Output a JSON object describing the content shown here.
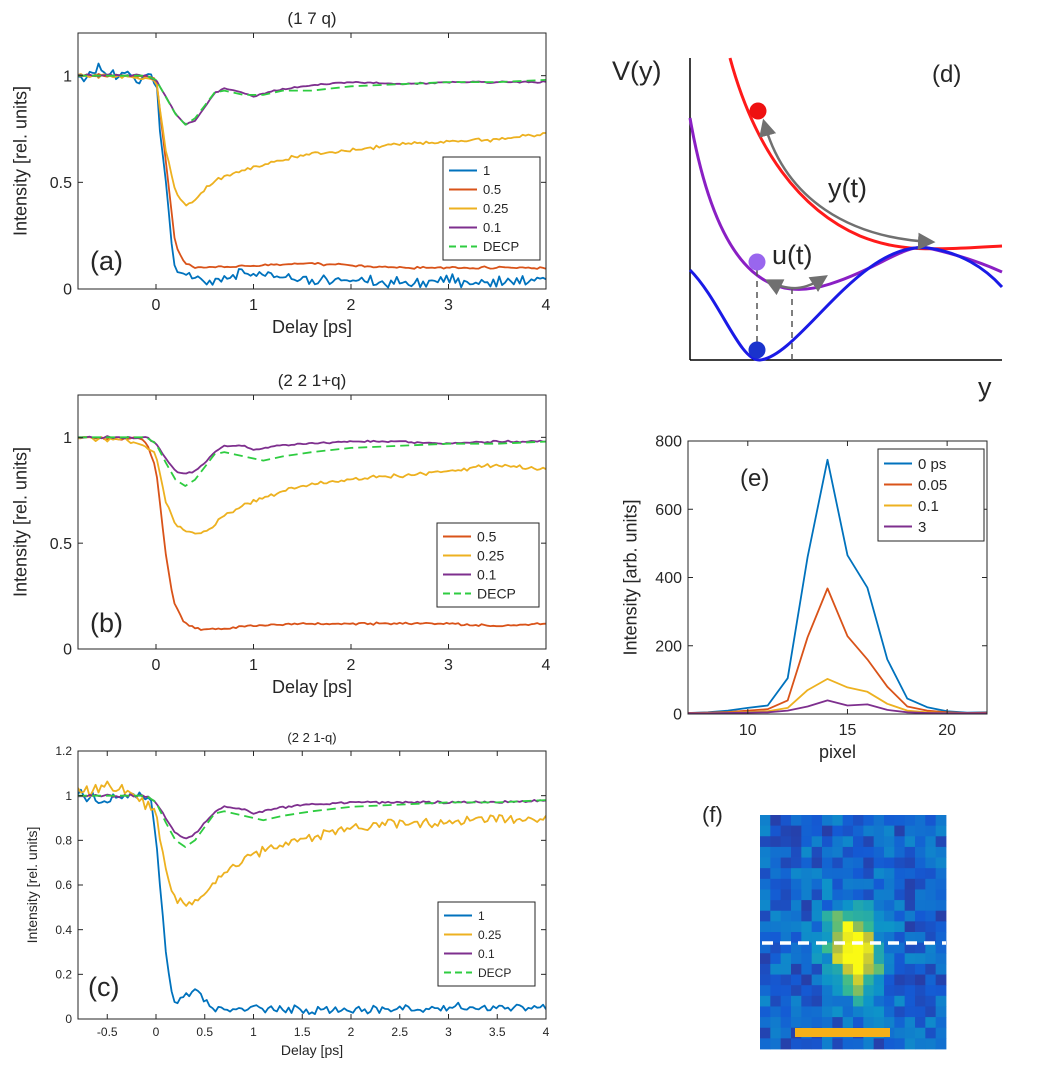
{
  "chart_data": [
    {
      "id": "a",
      "type": "line",
      "title": "(1 7 q)",
      "panel_label": "(a)",
      "xlabel": "Delay [ps]",
      "ylabel": "Intensity [rel. units]",
      "xlim": [
        -0.8,
        4
      ],
      "ylim": [
        0,
        1.2
      ],
      "xticks": [
        0,
        1,
        2,
        3,
        4
      ],
      "xtick_labels": [
        "0",
        "1",
        "2",
        "3",
        "4"
      ],
      "yticks": [
        0,
        0.5,
        1
      ],
      "ytick_labels": [
        "0",
        "0.5",
        "1"
      ],
      "legend_position": "right-middle",
      "series": [
        {
          "name": "1",
          "color": "#0072BD",
          "dash": "solid",
          "noise": 0.035,
          "x": [
            -0.8,
            -0.6,
            -0.4,
            -0.2,
            0,
            0.05,
            0.1,
            0.15,
            0.2,
            0.3,
            0.4,
            0.5,
            0.6,
            0.8,
            1,
            1.5,
            2,
            2.5,
            3,
            3.5,
            4
          ],
          "y": [
            1.0,
            1.02,
            1.0,
            1.0,
            0.98,
            0.7,
            0.5,
            0.25,
            0.1,
            0.07,
            0.06,
            0.04,
            0.035,
            0.06,
            0.07,
            0.05,
            0.04,
            0.035,
            0.04,
            0.035,
            0.04
          ]
        },
        {
          "name": "0.5",
          "color": "#D95319",
          "dash": "solid",
          "noise": 0.006,
          "x": [
            -0.8,
            -0.4,
            -0.2,
            0,
            0.05,
            0.1,
            0.15,
            0.2,
            0.3,
            0.4,
            0.5,
            1,
            1.5,
            2,
            2.5,
            3,
            3.5,
            4
          ],
          "y": [
            1.0,
            1.0,
            1.0,
            0.99,
            0.8,
            0.6,
            0.4,
            0.2,
            0.12,
            0.1,
            0.1,
            0.11,
            0.12,
            0.11,
            0.1,
            0.1,
            0.1,
            0.1
          ]
        },
        {
          "name": "0.25",
          "color": "#EDB120",
          "dash": "solid",
          "noise": 0.01,
          "x": [
            -0.8,
            -0.4,
            -0.2,
            0,
            0.1,
            0.2,
            0.3,
            0.4,
            0.5,
            0.7,
            1,
            1.5,
            2,
            2.5,
            3,
            3.5,
            4
          ],
          "y": [
            1.0,
            1.0,
            0.99,
            0.98,
            0.65,
            0.45,
            0.39,
            0.42,
            0.47,
            0.53,
            0.57,
            0.63,
            0.65,
            0.68,
            0.69,
            0.7,
            0.73
          ]
        },
        {
          "name": "0.1",
          "color": "#7E2F8E",
          "dash": "solid",
          "noise": 0.005,
          "x": [
            -0.8,
            -0.4,
            -0.1,
            0,
            0.1,
            0.2,
            0.3,
            0.4,
            0.5,
            0.6,
            0.7,
            0.9,
            1.0,
            1.2,
            1.5,
            2,
            2.5,
            3,
            3.5,
            4
          ],
          "y": [
            1.0,
            1.0,
            1.0,
            0.98,
            0.9,
            0.82,
            0.77,
            0.79,
            0.85,
            0.92,
            0.94,
            0.92,
            0.9,
            0.93,
            0.95,
            0.97,
            0.96,
            0.97,
            0.97,
            0.97
          ]
        },
        {
          "name": "DECP",
          "color": "#2ECC40",
          "dash": "dashed",
          "noise": 0,
          "x": [
            -0.8,
            -0.4,
            -0.1,
            0,
            0.1,
            0.2,
            0.3,
            0.4,
            0.5,
            0.6,
            0.7,
            0.9,
            1.1,
            1.3,
            1.6,
            2,
            2.5,
            3,
            3.5,
            4
          ],
          "y": [
            1.0,
            1.0,
            1.0,
            0.98,
            0.9,
            0.82,
            0.77,
            0.8,
            0.86,
            0.92,
            0.93,
            0.91,
            0.91,
            0.93,
            0.93,
            0.95,
            0.96,
            0.97,
            0.97,
            0.98
          ]
        }
      ]
    },
    {
      "id": "b",
      "type": "line",
      "title": "(2 2 1+q)",
      "panel_label": "(b)",
      "xlabel": "Delay [ps]",
      "ylabel": "Intensity [rel. units]",
      "xlim": [
        -0.8,
        4
      ],
      "ylim": [
        0,
        1.2
      ],
      "xticks": [
        0,
        1,
        2,
        3,
        4
      ],
      "xtick_labels": [
        "0",
        "1",
        "2",
        "3",
        "4"
      ],
      "yticks": [
        0,
        0.5,
        1
      ],
      "ytick_labels": [
        "0",
        "0.5",
        "1"
      ],
      "legend_position": "right-middle",
      "series": [
        {
          "name": "0.5",
          "color": "#D95319",
          "dash": "solid",
          "noise": 0.006,
          "x": [
            -0.8,
            -0.6,
            -0.4,
            -0.2,
            -0.1,
            0,
            0.05,
            0.1,
            0.15,
            0.2,
            0.3,
            0.4,
            0.5,
            1,
            1.5,
            2,
            2.5,
            3,
            3.5,
            4
          ],
          "y": [
            1.0,
            1.0,
            0.99,
            1.0,
            0.98,
            0.85,
            0.65,
            0.45,
            0.3,
            0.2,
            0.12,
            0.1,
            0.09,
            0.11,
            0.12,
            0.12,
            0.12,
            0.12,
            0.11,
            0.12
          ]
        },
        {
          "name": "0.25",
          "color": "#EDB120",
          "dash": "solid",
          "noise": 0.012,
          "x": [
            -0.8,
            -0.4,
            -0.2,
            0,
            0.1,
            0.2,
            0.3,
            0.4,
            0.5,
            0.7,
            1,
            1.5,
            2,
            2.5,
            3,
            3.5,
            4
          ],
          "y": [
            1.0,
            0.99,
            0.98,
            0.92,
            0.7,
            0.59,
            0.56,
            0.55,
            0.55,
            0.63,
            0.7,
            0.77,
            0.8,
            0.82,
            0.84,
            0.87,
            0.85
          ]
        },
        {
          "name": "0.1",
          "color": "#7E2F8E",
          "dash": "solid",
          "noise": 0.005,
          "x": [
            -0.8,
            -0.4,
            -0.1,
            0,
            0.1,
            0.2,
            0.3,
            0.4,
            0.5,
            0.6,
            0.7,
            0.9,
            1.0,
            1.2,
            1.5,
            2,
            2.5,
            3,
            3.5,
            4
          ],
          "y": [
            1.0,
            1.0,
            1.0,
            0.97,
            0.9,
            0.84,
            0.83,
            0.84,
            0.88,
            0.93,
            0.96,
            0.96,
            0.94,
            0.96,
            0.97,
            0.98,
            0.98,
            0.97,
            0.98,
            0.98
          ]
        },
        {
          "name": "DECP",
          "color": "#2ECC40",
          "dash": "dashed",
          "noise": 0,
          "x": [
            -0.8,
            -0.4,
            -0.1,
            0,
            0.1,
            0.2,
            0.3,
            0.4,
            0.5,
            0.6,
            0.7,
            0.9,
            1.1,
            1.3,
            1.6,
            2,
            2.5,
            3,
            3.5,
            4
          ],
          "y": [
            1.0,
            1.0,
            1.0,
            0.97,
            0.88,
            0.8,
            0.77,
            0.8,
            0.86,
            0.92,
            0.93,
            0.91,
            0.89,
            0.91,
            0.93,
            0.95,
            0.96,
            0.97,
            0.97,
            0.98
          ]
        }
      ]
    },
    {
      "id": "c",
      "type": "line",
      "title": "(2 2 1-q)",
      "panel_label": "(c)",
      "xlabel": "Delay [ps]",
      "ylabel": "Intensity [rel. units]",
      "xlim": [
        -0.8,
        4
      ],
      "ylim": [
        0,
        1.2
      ],
      "xticks": [
        -0.5,
        0,
        0.5,
        1,
        1.5,
        2,
        2.5,
        3,
        3.5,
        4
      ],
      "xtick_labels": [
        "-0.5",
        "0",
        "0.5",
        "1",
        "1.5",
        "2",
        "2.5",
        "3",
        "3.5",
        "4"
      ],
      "yticks": [
        0,
        0.2,
        0.4,
        0.6,
        0.8,
        1,
        1.2
      ],
      "ytick_labels": [
        "0",
        "0.2",
        "0.4",
        "0.6",
        "0.8",
        "1",
        "1.2"
      ],
      "legend_position": "right-lower",
      "series": [
        {
          "name": "1",
          "color": "#0072BD",
          "dash": "solid",
          "noise": 0.025,
          "x": [
            -0.8,
            -0.6,
            -0.4,
            -0.2,
            -0.05,
            0,
            0.05,
            0.1,
            0.15,
            0.2,
            0.3,
            0.4,
            0.5,
            0.6,
            0.8,
            1,
            1.5,
            2,
            2.5,
            3,
            3.5,
            4
          ],
          "y": [
            1.0,
            0.98,
            1.0,
            0.99,
            0.97,
            0.8,
            0.55,
            0.3,
            0.12,
            0.07,
            0.1,
            0.12,
            0.08,
            0.05,
            0.04,
            0.05,
            0.035,
            0.04,
            0.045,
            0.05,
            0.05,
            0.05
          ]
        },
        {
          "name": "0.25",
          "color": "#EDB120",
          "dash": "solid",
          "noise": 0.028,
          "x": [
            -0.8,
            -0.4,
            -0.2,
            0,
            0.1,
            0.2,
            0.3,
            0.4,
            0.5,
            0.7,
            1,
            1.5,
            2,
            2.5,
            3,
            3.5,
            4
          ],
          "y": [
            1.02,
            1.03,
            1.0,
            0.93,
            0.65,
            0.53,
            0.52,
            0.52,
            0.56,
            0.65,
            0.74,
            0.8,
            0.85,
            0.88,
            0.88,
            0.9,
            0.89
          ]
        },
        {
          "name": "0.1",
          "color": "#7E2F8E",
          "dash": "solid",
          "noise": 0.006,
          "x": [
            -0.8,
            -0.4,
            -0.1,
            0,
            0.1,
            0.2,
            0.3,
            0.4,
            0.5,
            0.6,
            0.7,
            0.9,
            1.0,
            1.2,
            1.5,
            2,
            2.5,
            3,
            3.5,
            4
          ],
          "y": [
            1.0,
            1.0,
            1.0,
            0.97,
            0.9,
            0.83,
            0.81,
            0.83,
            0.88,
            0.93,
            0.95,
            0.94,
            0.92,
            0.94,
            0.96,
            0.97,
            0.97,
            0.97,
            0.97,
            0.98
          ]
        },
        {
          "name": "DECP",
          "color": "#2ECC40",
          "dash": "dashed",
          "noise": 0,
          "x": [
            -0.8,
            -0.4,
            -0.1,
            0,
            0.1,
            0.2,
            0.3,
            0.4,
            0.5,
            0.6,
            0.7,
            0.9,
            1.1,
            1.3,
            1.6,
            2,
            2.5,
            3,
            3.5,
            4
          ],
          "y": [
            1.0,
            1.0,
            1.0,
            0.97,
            0.88,
            0.8,
            0.77,
            0.8,
            0.86,
            0.92,
            0.93,
            0.91,
            0.89,
            0.91,
            0.93,
            0.95,
            0.96,
            0.97,
            0.97,
            0.98
          ]
        }
      ]
    },
    {
      "id": "e",
      "type": "line",
      "title": "",
      "panel_label": "(e)",
      "xlabel": "pixel",
      "ylabel": "Intensity [arb. units]",
      "xlim": [
        7,
        22
      ],
      "ylim": [
        0,
        800
      ],
      "xticks": [
        10,
        15,
        20
      ],
      "xtick_labels": [
        "10",
        "15",
        "20"
      ],
      "yticks": [
        0,
        200,
        400,
        600,
        800
      ],
      "ytick_labels": [
        "0",
        "200",
        "400",
        "600",
        "800"
      ],
      "legend_position": "top-right",
      "series": [
        {
          "name": "0 ps",
          "color": "#0072BD",
          "dash": "solid",
          "noise": 0,
          "x": [
            7,
            8,
            9,
            10,
            11,
            12,
            13,
            14,
            15,
            16,
            17,
            18,
            19,
            20,
            21,
            22
          ],
          "y": [
            3,
            5,
            10,
            18,
            25,
            105,
            460,
            745,
            465,
            370,
            160,
            45,
            20,
            8,
            4,
            5
          ]
        },
        {
          "name": "0.05",
          "color": "#D95319",
          "dash": "solid",
          "noise": 0,
          "x": [
            7,
            8,
            9,
            10,
            11,
            12,
            13,
            14,
            15,
            16,
            17,
            18,
            19,
            20,
            21,
            22
          ],
          "y": [
            3,
            4,
            6,
            10,
            14,
            40,
            225,
            368,
            228,
            160,
            80,
            22,
            10,
            5,
            3,
            4
          ]
        },
        {
          "name": "0.1",
          "color": "#EDB120",
          "dash": "solid",
          "noise": 0,
          "x": [
            7,
            8,
            9,
            10,
            11,
            12,
            13,
            14,
            15,
            16,
            17,
            18,
            19,
            20,
            21,
            22
          ],
          "y": [
            2,
            3,
            4,
            6,
            8,
            18,
            70,
            103,
            78,
            65,
            30,
            10,
            5,
            3,
            2,
            2
          ]
        },
        {
          "name": "3",
          "color": "#7E2F8E",
          "dash": "solid",
          "noise": 0,
          "x": [
            7,
            8,
            9,
            10,
            11,
            12,
            13,
            14,
            15,
            16,
            17,
            18,
            19,
            20,
            21,
            22
          ],
          "y": [
            2,
            2,
            3,
            4,
            5,
            10,
            22,
            40,
            25,
            28,
            12,
            5,
            3,
            2,
            2,
            2
          ]
        }
      ]
    }
  ],
  "diagram_d": {
    "panel_label": "(d)",
    "y_axis_label": "V(y)",
    "x_axis_label": "y",
    "annotations": [
      "y(t)",
      "u(t)"
    ],
    "curve_colors": {
      "excited": "#FF1A1A",
      "intermediate": "#8A1FC4",
      "ground": "#1A1AE6"
    },
    "dot_colors": {
      "red": "#EE1111",
      "purple": "#9966EE",
      "blue": "#1A33CC"
    },
    "arrow_color": "#707070"
  },
  "image_f": {
    "panel_label": "(f)",
    "scalebar_color": "#F5B018",
    "cut_line_color": "#FFFFFF"
  }
}
